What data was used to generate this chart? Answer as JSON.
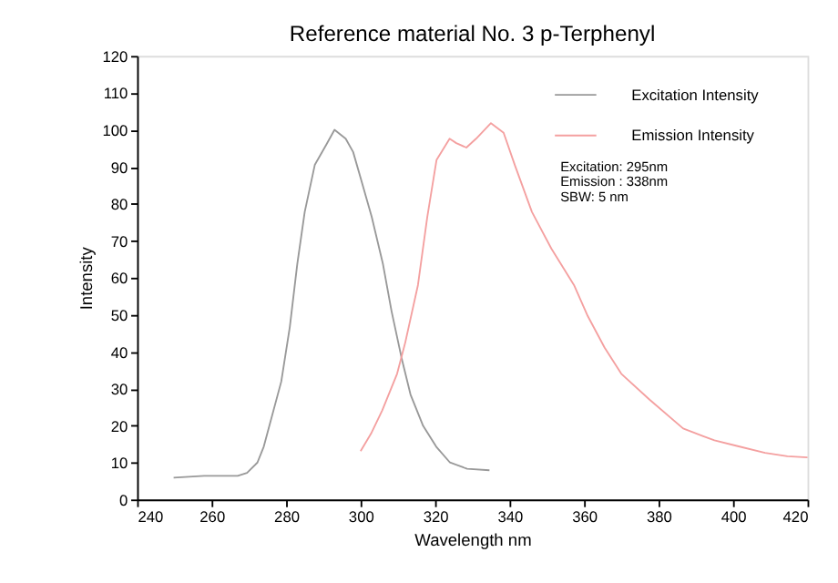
{
  "chart_data": {
    "type": "line",
    "title": "Reference material No. 3   p-Terphenyl",
    "xlabel": "Wavelength nm",
    "ylabel": "Intensity",
    "xlim": [
      240,
      420
    ],
    "xticks": [
      240,
      260,
      280,
      300,
      320,
      340,
      360,
      380,
      400,
      420
    ],
    "ylim": [
      0,
      120
    ],
    "yticks": [
      0,
      10,
      20,
      30,
      40,
      50,
      60,
      70,
      80,
      90,
      100,
      110,
      120
    ],
    "grid": false,
    "legend": "top right",
    "marker": "none",
    "line_style": "solid",
    "annotations": [
      "Excitation: 295nm",
      "Emission : 338nm",
      "SBW: 5 nm"
    ],
    "series": [
      {
        "name": "Excitation Intensity",
        "color": "#999999",
        "x": [
          249.8,
          258,
          267,
          269.5,
          272.3,
          274,
          278.7,
          281,
          283,
          285,
          287.7,
          290.8,
          293,
          296,
          298,
          300,
          303,
          306,
          308.3,
          311,
          313.4,
          316.8,
          320.3,
          324,
          328.6,
          334.6
        ],
        "values": [
          5.9,
          6.4,
          6.4,
          7.2,
          10,
          14.3,
          31.9,
          46.7,
          63.7,
          77.8,
          90.5,
          96,
          100,
          97.6,
          94,
          87,
          76.4,
          63.7,
          51,
          38.3,
          28.4,
          19.9,
          14.3,
          10,
          8.3,
          7.9
        ]
      },
      {
        "name": "Emission Intensity",
        "color": "#f4a0a0",
        "x": [
          300,
          302.8,
          305.8,
          309.8,
          312,
          315.4,
          317.9,
          320.4,
          323.9,
          325.7,
          328.4,
          331,
          335,
          338.4,
          341.4,
          346,
          351.2,
          357.3,
          361,
          365.5,
          370,
          377.6,
          386.6,
          392,
          395,
          401,
          408.6,
          414.6,
          420
        ],
        "values": [
          13.1,
          17.8,
          24.1,
          34,
          42.5,
          58,
          76.4,
          91.9,
          97.6,
          96.4,
          95.2,
          97.6,
          101.8,
          99.2,
          90.5,
          77.8,
          67.9,
          58,
          49.6,
          41.1,
          34,
          27,
          19.2,
          17.1,
          16,
          14.5,
          12.6,
          11.7,
          11.4
        ]
      }
    ]
  }
}
